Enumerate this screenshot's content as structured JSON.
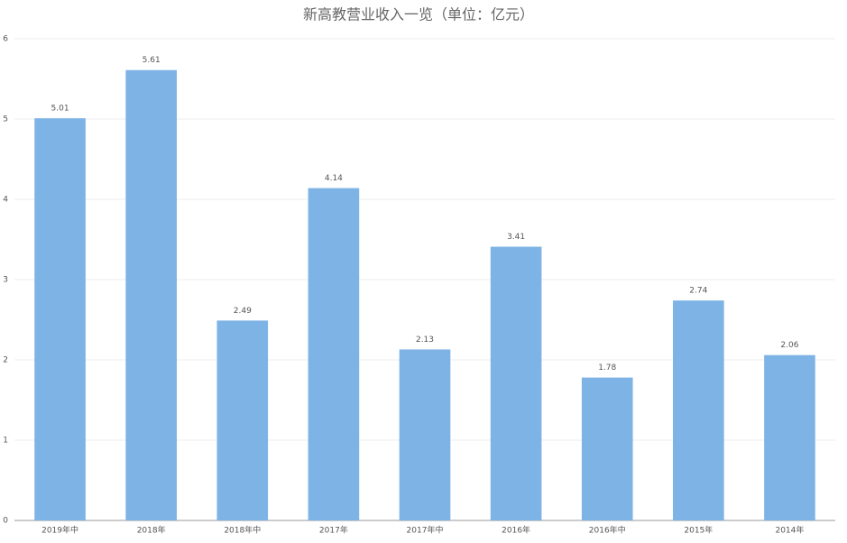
{
  "chart_data": {
    "type": "bar",
    "title": "新高教营业收入一览（单位：亿元）",
    "categories": [
      "2019年中",
      "2018年",
      "2018年中",
      "2017年",
      "2017年中",
      "2016年",
      "2016年中",
      "2015年",
      "2014年"
    ],
    "values": [
      5.01,
      5.61,
      2.49,
      4.14,
      2.13,
      3.41,
      1.78,
      2.74,
      2.06
    ],
    "color": "#7eb3e5",
    "ylim": [
      0,
      6
    ],
    "yticks": [
      0,
      1,
      2,
      3,
      4,
      5,
      6
    ],
    "grid": true
  }
}
